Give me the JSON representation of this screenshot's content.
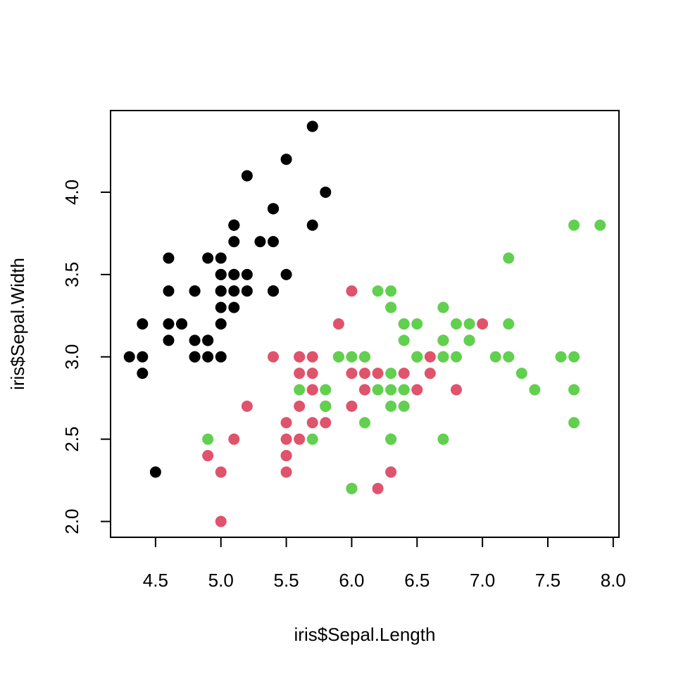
{
  "chart_data": {
    "type": "scatter",
    "title": "",
    "xlabel": "iris$Sepal.Length",
    "ylabel": "iris$Sepal.Width",
    "xlim": [
      4.3,
      7.9
    ],
    "ylim": [
      2.0,
      4.4
    ],
    "x_ticks": [
      "4.5",
      "5.0",
      "5.5",
      "6.0",
      "6.5",
      "7.0",
      "7.5",
      "8.0"
    ],
    "y_ticks": [
      "2.0",
      "2.5",
      "3.0",
      "3.5",
      "4.0"
    ],
    "grid": false,
    "legend": "none",
    "series": [
      {
        "color": "#000000",
        "points": [
          [
            5.1,
            3.5
          ],
          [
            4.9,
            3.0
          ],
          [
            4.7,
            3.2
          ],
          [
            4.6,
            3.1
          ],
          [
            5.0,
            3.6
          ],
          [
            5.4,
            3.9
          ],
          [
            4.6,
            3.4
          ],
          [
            5.0,
            3.4
          ],
          [
            4.4,
            2.9
          ],
          [
            4.9,
            3.1
          ],
          [
            5.4,
            3.7
          ],
          [
            4.8,
            3.4
          ],
          [
            4.8,
            3.0
          ],
          [
            4.3,
            3.0
          ],
          [
            5.8,
            4.0
          ],
          [
            5.7,
            4.4
          ],
          [
            5.4,
            3.9
          ],
          [
            5.1,
            3.5
          ],
          [
            5.7,
            3.8
          ],
          [
            5.1,
            3.8
          ],
          [
            5.4,
            3.4
          ],
          [
            5.1,
            3.7
          ],
          [
            4.6,
            3.6
          ],
          [
            5.1,
            3.3
          ],
          [
            4.8,
            3.4
          ],
          [
            5.0,
            3.0
          ],
          [
            5.0,
            3.4
          ],
          [
            5.2,
            3.5
          ],
          [
            5.2,
            3.4
          ],
          [
            4.7,
            3.2
          ],
          [
            4.8,
            3.1
          ],
          [
            5.4,
            3.4
          ],
          [
            5.2,
            4.1
          ],
          [
            5.5,
            4.2
          ],
          [
            4.9,
            3.1
          ],
          [
            5.0,
            3.2
          ],
          [
            5.5,
            3.5
          ],
          [
            4.9,
            3.6
          ],
          [
            4.4,
            3.0
          ],
          [
            5.1,
            3.4
          ],
          [
            5.0,
            3.5
          ],
          [
            4.5,
            2.3
          ],
          [
            4.4,
            3.2
          ],
          [
            5.0,
            3.5
          ],
          [
            5.1,
            3.8
          ],
          [
            4.8,
            3.0
          ],
          [
            5.1,
            3.8
          ],
          [
            4.6,
            3.2
          ],
          [
            5.3,
            3.7
          ],
          [
            5.0,
            3.3
          ]
        ]
      },
      {
        "color": "#df536b",
        "points": [
          [
            7.0,
            3.2
          ],
          [
            6.4,
            3.2
          ],
          [
            6.9,
            3.1
          ],
          [
            5.5,
            2.3
          ],
          [
            6.5,
            2.8
          ],
          [
            5.7,
            2.8
          ],
          [
            6.3,
            3.3
          ],
          [
            4.9,
            2.4
          ],
          [
            6.6,
            2.9
          ],
          [
            5.2,
            2.7
          ],
          [
            5.0,
            2.0
          ],
          [
            5.9,
            3.0
          ],
          [
            6.0,
            2.2
          ],
          [
            6.1,
            2.9
          ],
          [
            5.6,
            2.9
          ],
          [
            6.7,
            3.1
          ],
          [
            5.6,
            3.0
          ],
          [
            5.8,
            2.7
          ],
          [
            6.2,
            2.2
          ],
          [
            5.6,
            2.5
          ],
          [
            5.9,
            3.2
          ],
          [
            6.1,
            2.8
          ],
          [
            6.3,
            2.5
          ],
          [
            6.1,
            2.8
          ],
          [
            6.4,
            2.9
          ],
          [
            6.6,
            3.0
          ],
          [
            6.8,
            2.8
          ],
          [
            6.7,
            3.0
          ],
          [
            6.0,
            2.9
          ],
          [
            5.7,
            2.6
          ],
          [
            5.5,
            2.4
          ],
          [
            5.5,
            2.4
          ],
          [
            5.8,
            2.7
          ],
          [
            6.0,
            2.7
          ],
          [
            5.4,
            3.0
          ],
          [
            6.0,
            3.4
          ],
          [
            6.7,
            3.1
          ],
          [
            6.3,
            2.3
          ],
          [
            5.6,
            3.0
          ],
          [
            5.5,
            2.5
          ],
          [
            5.5,
            2.6
          ],
          [
            6.1,
            3.0
          ],
          [
            5.8,
            2.6
          ],
          [
            5.0,
            2.3
          ],
          [
            5.6,
            2.7
          ],
          [
            5.7,
            3.0
          ],
          [
            5.7,
            2.9
          ],
          [
            6.2,
            2.9
          ],
          [
            5.1,
            2.5
          ],
          [
            5.7,
            2.8
          ]
        ]
      },
      {
        "color": "#61d04f",
        "points": [
          [
            6.3,
            3.3
          ],
          [
            5.8,
            2.7
          ],
          [
            7.1,
            3.0
          ],
          [
            6.3,
            2.9
          ],
          [
            6.5,
            3.0
          ],
          [
            7.6,
            3.0
          ],
          [
            4.9,
            2.5
          ],
          [
            7.3,
            2.9
          ],
          [
            6.7,
            2.5
          ],
          [
            7.2,
            3.6
          ],
          [
            6.5,
            3.2
          ],
          [
            6.4,
            2.7
          ],
          [
            6.8,
            3.0
          ],
          [
            5.7,
            2.5
          ],
          [
            5.8,
            2.8
          ],
          [
            6.4,
            3.2
          ],
          [
            6.5,
            3.0
          ],
          [
            7.7,
            3.8
          ],
          [
            7.7,
            2.6
          ],
          [
            6.0,
            2.2
          ],
          [
            6.9,
            3.2
          ],
          [
            5.6,
            2.8
          ],
          [
            7.7,
            2.8
          ],
          [
            6.3,
            2.7
          ],
          [
            6.7,
            3.3
          ],
          [
            7.2,
            3.2
          ],
          [
            6.2,
            2.8
          ],
          [
            6.1,
            3.0
          ],
          [
            6.4,
            2.8
          ],
          [
            7.2,
            3.0
          ],
          [
            7.4,
            2.8
          ],
          [
            7.9,
            3.8
          ],
          [
            6.4,
            2.8
          ],
          [
            6.3,
            2.8
          ],
          [
            6.1,
            2.6
          ],
          [
            7.7,
            3.0
          ],
          [
            6.3,
            3.4
          ],
          [
            6.4,
            3.1
          ],
          [
            6.0,
            3.0
          ],
          [
            6.9,
            3.1
          ],
          [
            6.7,
            3.1
          ],
          [
            6.9,
            3.1
          ],
          [
            5.8,
            2.7
          ],
          [
            6.8,
            3.2
          ],
          [
            6.7,
            3.3
          ],
          [
            6.7,
            3.0
          ],
          [
            6.3,
            2.5
          ],
          [
            6.5,
            3.0
          ],
          [
            6.2,
            3.4
          ],
          [
            5.9,
            3.0
          ]
        ]
      }
    ]
  }
}
